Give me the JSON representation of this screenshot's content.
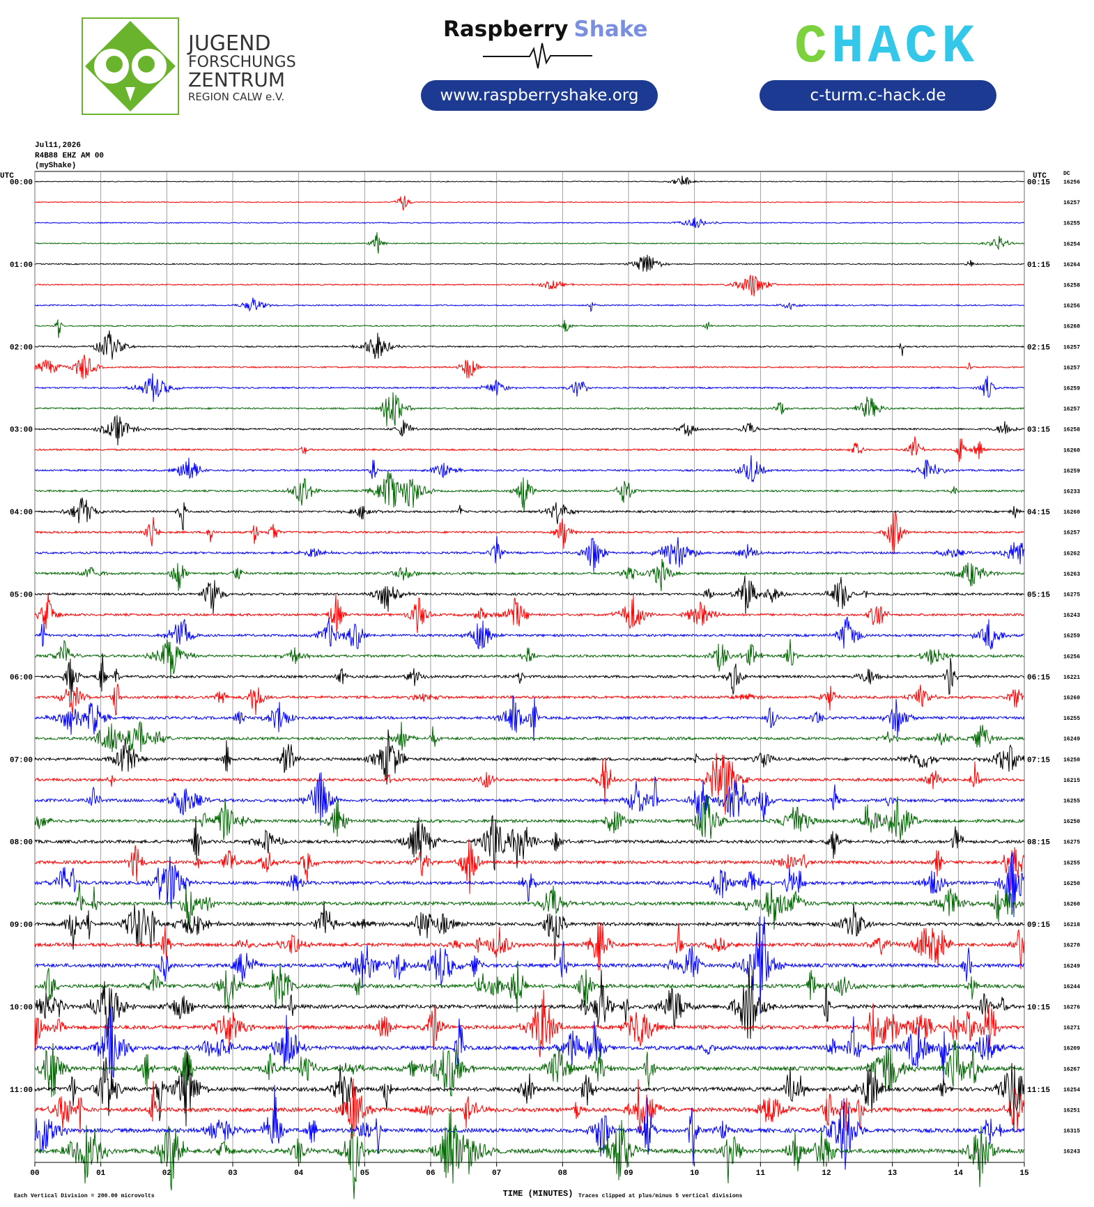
{
  "header": {
    "jfz": {
      "line1": "JUGEND",
      "line2": "FORSCHUNGS",
      "line3": "ZENTRUM",
      "line4": "REGION CALW e.V."
    },
    "raspberry": {
      "word1": "Raspberry",
      "word2": "Shake",
      "url": "www.raspberryshake.org"
    },
    "chack": {
      "logo_first": "C",
      "logo_rest": "HACK",
      "url": "c-turm.c-hack.de"
    }
  },
  "chart_data": {
    "type": "helicorder",
    "date": "Jul11,2026",
    "station": "R4B88 EHZ AM 00",
    "source": "(myShake)",
    "left_axis_label": "UTC",
    "right_axis_label": "UTC",
    "dc_label": "DC",
    "left_labels": [
      "00:00",
      "01:00",
      "02:00",
      "03:00",
      "04:00",
      "05:00",
      "06:00",
      "07:00",
      "08:00",
      "09:00",
      "10:00",
      "11:00"
    ],
    "right_labels": [
      "00:15",
      "01:15",
      "02:15",
      "03:15",
      "04:15",
      "05:15",
      "06:15",
      "07:15",
      "08:15",
      "09:15",
      "10:15",
      "11:15"
    ],
    "dc_values": [
      16256,
      16257,
      16255,
      16254,
      16264,
      16258,
      16256,
      16260,
      16257,
      16257,
      16259,
      16257,
      16258,
      16260,
      16259,
      16233,
      16260,
      16257,
      16262,
      16263,
      16275,
      16243,
      16259,
      16256,
      16221,
      16260,
      16255,
      16249,
      16250,
      16215,
      16255,
      16250,
      16275,
      16255,
      16250,
      16260,
      16218,
      16270,
      16249,
      16244,
      16276,
      16271,
      16209,
      16267,
      16254,
      16251,
      16315,
      16243
    ],
    "colors": [
      "#000000",
      "#ff0000",
      "#0000ff",
      "#006600"
    ],
    "x_label": "TIME (MINUTES)",
    "xlim": [
      0,
      15
    ],
    "xticks": [
      {
        "value": 0,
        "label": "00"
      },
      {
        "value": 1,
        "label": "01"
      },
      {
        "value": 2,
        "label": "02"
      },
      {
        "value": 3,
        "label": "03"
      },
      {
        "value": 4,
        "label": "04"
      },
      {
        "value": 5,
        "label": "05"
      },
      {
        "value": 6,
        "label": "06"
      },
      {
        "value": 7,
        "label": "07"
      },
      {
        "value": 8,
        "label": "08"
      },
      {
        "value": 9,
        "label": "09"
      },
      {
        "value": 10,
        "label": "10"
      },
      {
        "value": 11,
        "label": "11"
      },
      {
        "value": 12,
        "label": "12"
      },
      {
        "value": 13,
        "label": "13"
      },
      {
        "value": 14,
        "label": "14"
      },
      {
        "value": 15,
        "label": "15"
      }
    ],
    "grid": true,
    "footer_left": "Each Vertical Division = 200.00 microvolts",
    "footer_right": "Traces clipped at plus/minus 5 vertical divisions"
  }
}
